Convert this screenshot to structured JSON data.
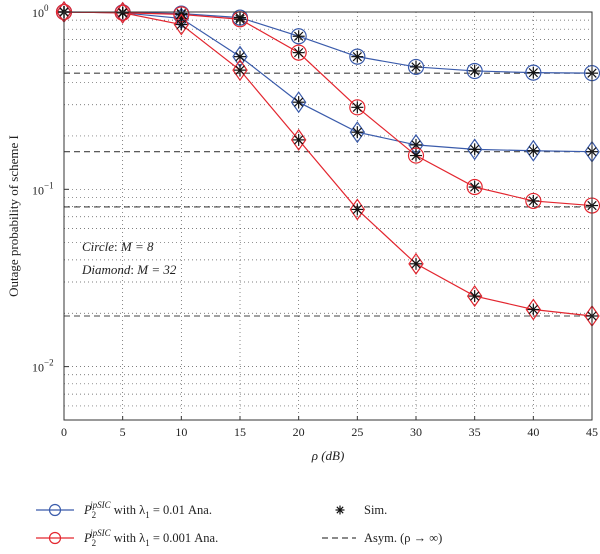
{
  "chart_data": {
    "type": "line",
    "xlabel": "ρ (dB)",
    "ylabel": "Outage probability of scheme I",
    "x": [
      0,
      5,
      10,
      15,
      20,
      25,
      30,
      35,
      40,
      45
    ],
    "xlim": [
      0,
      45
    ],
    "ylim": [
      0.005,
      1
    ],
    "yscale": "log",
    "x_ticks": [
      "0",
      "5",
      "10",
      "15",
      "20",
      "25",
      "30",
      "35",
      "40",
      "45"
    ],
    "y_ticks": [
      {
        "value": 1,
        "base": "10",
        "exp": "0"
      },
      {
        "value": 0.1,
        "base": "10",
        "exp": "−1"
      },
      {
        "value": 0.01,
        "base": "10",
        "exp": "−2"
      }
    ],
    "grid": true,
    "annotations": {
      "circle_name": "Circle",
      "circle_value": "M = 8",
      "diamond_name": "Diamond",
      "diamond_value": "M = 32"
    },
    "series": [
      {
        "group": "blue",
        "marker": "circle",
        "values": [
          1.0,
          0.995,
          0.98,
          0.93,
          0.73,
          0.56,
          0.49,
          0.465,
          0.455,
          0.452
        ]
      },
      {
        "group": "blue",
        "marker": "diamond",
        "values": [
          1.0,
          0.99,
          0.92,
          0.56,
          0.31,
          0.21,
          0.178,
          0.168,
          0.165,
          0.163
        ]
      },
      {
        "group": "red",
        "marker": "circle",
        "values": [
          1.0,
          0.99,
          0.97,
          0.91,
          0.59,
          0.29,
          0.155,
          0.103,
          0.086,
          0.081
        ]
      },
      {
        "group": "red",
        "marker": "diamond",
        "values": [
          1.0,
          0.99,
          0.85,
          0.47,
          0.19,
          0.077,
          0.038,
          0.025,
          0.021,
          0.0193
        ]
      }
    ],
    "asymptotes": [
      0.452,
      0.163,
      0.0795,
      0.0193
    ],
    "legend": {
      "placement": "bottom",
      "blue_prefix": "P",
      "blue_sub": "2",
      "blue_sup": "ipSIC",
      "blue_text": " with λ",
      "blue_lsub": "1",
      "blue_rest": " = 0.01 Ana.",
      "red_prefix": "P",
      "red_sub": "2",
      "red_sup": "ipSIC",
      "red_text": " with λ",
      "red_lsub": "1",
      "red_rest": " = 0.001 Ana.",
      "sim": "Sim.",
      "asym": "Asym. (ρ → ∞)"
    },
    "colors": {
      "blue": "#3a5bab",
      "red": "#e3262f",
      "asym": "#444444",
      "grid": "#555555"
    }
  }
}
